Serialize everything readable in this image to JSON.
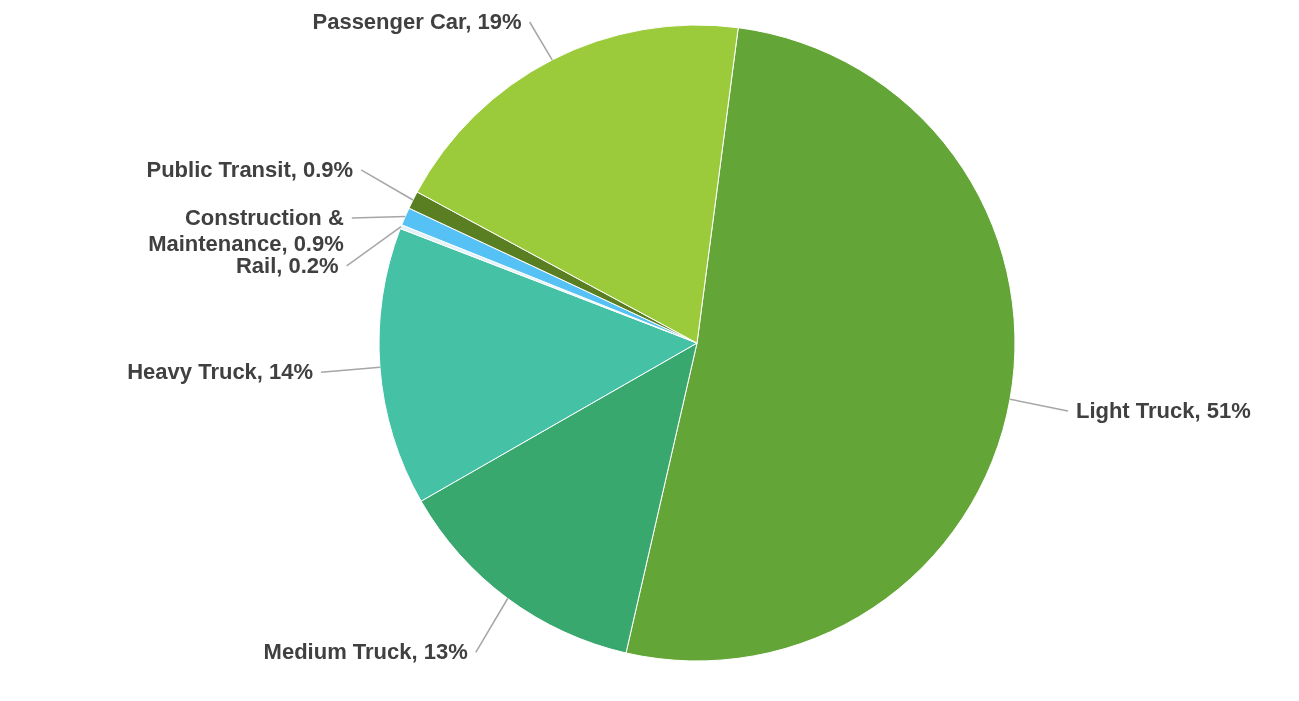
{
  "chart_data": {
    "type": "pie",
    "categories": [
      "Light Truck",
      "Medium Truck",
      "Heavy Truck",
      "Rail",
      "Construction & Maintenance",
      "Public Transit",
      "Passenger Car"
    ],
    "values": [
      51,
      13,
      14,
      0.2,
      0.9,
      0.9,
      19
    ],
    "colors": [
      "#63a537",
      "#38a86f",
      "#45c1a5",
      "#e4f1f8",
      "#56c1f5",
      "#5a7f22",
      "#9bcb3b"
    ],
    "value_labels": [
      "51%",
      "13%",
      "14%",
      "0.2%",
      "0.9%",
      "0.9%",
      "19%"
    ]
  }
}
